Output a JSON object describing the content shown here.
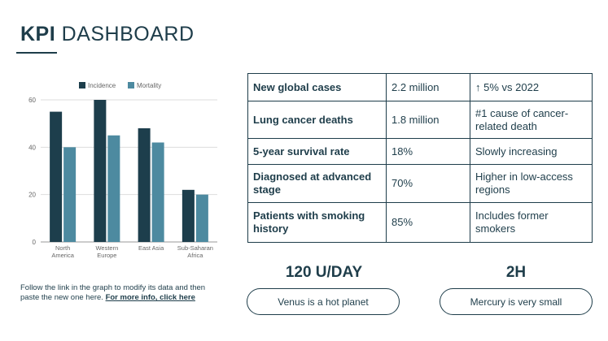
{
  "header": {
    "title_bold": "KPI",
    "title_rest": "DASHBOARD"
  },
  "colors": {
    "dark": "#1e3d4a",
    "incidence": "#1d3e4c",
    "mortality": "#4d8aa0",
    "grid": "#dddddd",
    "axis_text": "#666666"
  },
  "chart_data": {
    "type": "bar",
    "categories": [
      [
        "North",
        "America"
      ],
      [
        "Western",
        "Europe"
      ],
      [
        "East Asia"
      ],
      [
        "Sub-Saharan",
        "Africa"
      ]
    ],
    "series": [
      {
        "name": "Incidence",
        "values": [
          55,
          60,
          48,
          22
        ]
      },
      {
        "name": "Mortality",
        "values": [
          40,
          45,
          42,
          20
        ]
      }
    ],
    "ylim": [
      0,
      60
    ],
    "yticks": [
      "0",
      "20",
      "40",
      "60"
    ],
    "grid": true,
    "legend": "top-center"
  },
  "note": {
    "text": "Follow the link in the graph to modify its data and then paste the new one here. ",
    "link": "For more info, click here"
  },
  "kpi_table": [
    {
      "label": "New global cases",
      "value": "2.2 million",
      "note": "↑ 5% vs 2022"
    },
    {
      "label": "Lung cancer deaths",
      "value": "1.8 million",
      "note": "#1 cause of cancer-related death"
    },
    {
      "label": "5-year survival rate",
      "value": "18%",
      "note": "Slowly increasing"
    },
    {
      "label": "Diagnosed at advanced stage",
      "value": "70%",
      "note": "Higher in low-access regions"
    },
    {
      "label": "Patients with smoking history",
      "value": "85%",
      "note": "Includes former smokers"
    }
  ],
  "stats": [
    {
      "value": "120 U/DAY",
      "caption": "Venus is a hot planet"
    },
    {
      "value": "2H",
      "caption": "Mercury is very small"
    }
  ]
}
